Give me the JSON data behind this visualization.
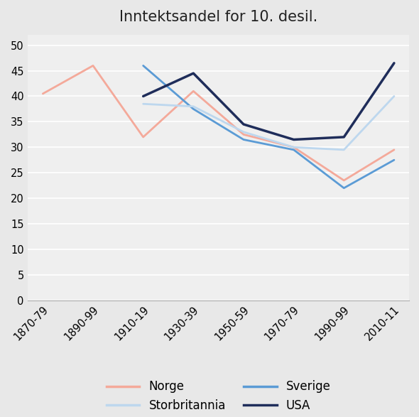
{
  "title": "Inntektsandel for 10. desil.",
  "x_labels": [
    "1870-79",
    "1890-99",
    "1910-19",
    "1930-39",
    "1950-59",
    "1970-79",
    "1990-99",
    "2010-11"
  ],
  "series": {
    "Norge": {
      "values": [
        40.5,
        46.0,
        32.0,
        41.0,
        32.5,
        30.0,
        23.5,
        29.5
      ],
      "color": "#F4A99A",
      "linewidth": 2.0,
      "zorder": 3
    },
    "Sverige": {
      "values": [
        null,
        null,
        46.0,
        37.5,
        31.5,
        29.5,
        22.0,
        27.5
      ],
      "color": "#5B9BD5",
      "linewidth": 2.0,
      "zorder": 3
    },
    "Storbritannia": {
      "values": [
        null,
        null,
        38.5,
        38.0,
        33.0,
        30.0,
        29.5,
        40.0
      ],
      "color": "#BDD7EE",
      "linewidth": 2.0,
      "zorder": 3
    },
    "USA": {
      "values": [
        null,
        null,
        40.0,
        44.5,
        34.5,
        31.5,
        32.0,
        46.5
      ],
      "color": "#1F2D5A",
      "linewidth": 2.5,
      "zorder": 4
    }
  },
  "ylim": [
    0,
    52
  ],
  "yticks": [
    0,
    5,
    10,
    15,
    20,
    25,
    30,
    35,
    40,
    45,
    50
  ],
  "background_color": "#E8E8E8",
  "plot_background_color": "#EFEFEF",
  "title_fontsize": 15,
  "tick_fontsize": 10.5,
  "legend_fontsize": 12,
  "legend_order": [
    "Norge",
    "Storbritannia",
    "Sverige",
    "USA"
  ],
  "grid_color": "#FFFFFF",
  "grid_linewidth": 1.2
}
